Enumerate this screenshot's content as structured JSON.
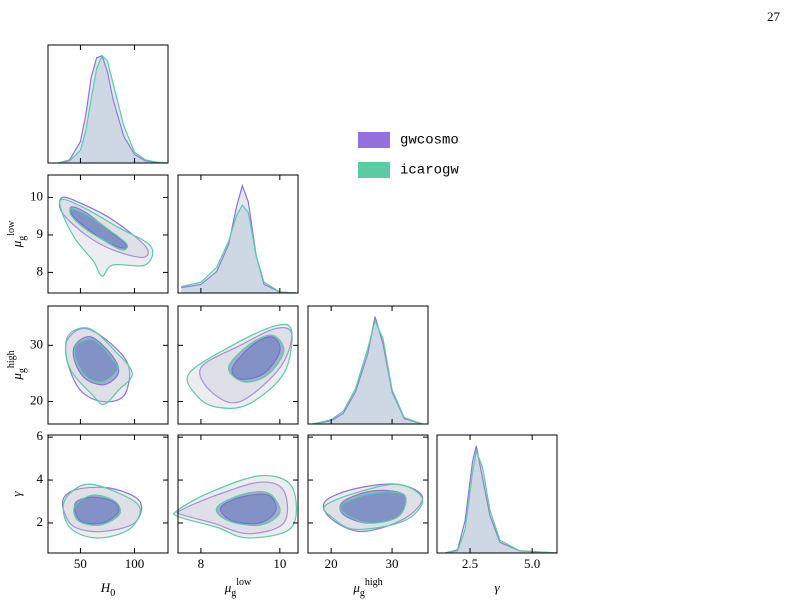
{
  "page_number": "27",
  "chart_data": {
    "type": "corner",
    "series": [
      {
        "name": "gwcosmo",
        "color": "#9370db"
      },
      {
        "name": "icarogw",
        "color": "#5ccba3"
      }
    ],
    "marginal_ylim": [
      0,
      1.1
    ],
    "params": [
      {
        "label": {
          "symbol": "H",
          "sub": "0"
        },
        "xlim": [
          20,
          131
        ],
        "xticks": [
          50,
          100
        ]
      },
      {
        "label": {
          "symbol": "μ",
          "sub": "g",
          "sup": "low"
        },
        "xlim": [
          7.42,
          10.46
        ],
        "xticks": [
          8,
          10
        ],
        "ylim": [
          7.45,
          10.6
        ],
        "yticks": [
          8,
          9,
          10
        ]
      },
      {
        "label": {
          "symbol": "μ",
          "sub": "g",
          "sup": "high"
        },
        "xlim": [
          16.2,
          35.9
        ],
        "xticks": [
          20,
          30
        ],
        "ylim": [
          16,
          37
        ],
        "yticks": [
          20,
          30
        ]
      },
      {
        "label": {
          "symbol": "γ"
        },
        "xlim": [
          1.17,
          6.0
        ],
        "xticks": [
          2.5,
          {
            "value": 5,
            "label": "5.0"
          }
        ],
        "ylim": [
          0.6,
          6.1
        ],
        "yticks": [
          2,
          4,
          6
        ]
      }
    ],
    "marginals": [
      {
        "x": [
          30,
          40,
          50,
          55,
          60,
          65,
          70,
          75,
          80,
          90,
          100,
          110,
          120,
          130
        ],
        "values": [
          [
            0,
            0.03,
            0.2,
            0.45,
            0.8,
            0.98,
            1.0,
            0.85,
            0.6,
            0.25,
            0.08,
            0.02,
            0.005,
            0
          ],
          [
            0,
            0.02,
            0.12,
            0.3,
            0.6,
            0.88,
            1.0,
            0.95,
            0.75,
            0.35,
            0.1,
            0.03,
            0.01,
            0
          ]
        ]
      },
      {
        "x": [
          7.5,
          8,
          8.4,
          8.7,
          8.9,
          9.05,
          9.2,
          9.4,
          9.6,
          10,
          10.4
        ],
        "values": [
          [
            0.05,
            0.08,
            0.2,
            0.45,
            0.8,
            1.0,
            0.85,
            0.35,
            0.08,
            0.01,
            0
          ],
          [
            0.06,
            0.1,
            0.24,
            0.48,
            0.72,
            0.82,
            0.75,
            0.35,
            0.1,
            0.01,
            0
          ]
        ]
      },
      {
        "x": [
          17,
          20,
          22,
          24,
          26,
          27.2,
          28.5,
          30,
          32,
          35
        ],
        "values": [
          [
            0,
            0.03,
            0.1,
            0.3,
            0.65,
            1.0,
            0.75,
            0.3,
            0.05,
            0
          ],
          [
            0,
            0.04,
            0.12,
            0.33,
            0.7,
            0.96,
            0.8,
            0.32,
            0.06,
            0
          ]
        ]
      },
      {
        "x": [
          1.5,
          2,
          2.3,
          2.6,
          2.75,
          3,
          3.3,
          3.7,
          4.5,
          6
        ],
        "values": [
          [
            0,
            0.03,
            0.3,
            0.85,
            1.0,
            0.7,
            0.35,
            0.1,
            0.02,
            0
          ],
          [
            0,
            0.02,
            0.22,
            0.75,
            0.95,
            0.8,
            0.4,
            0.12,
            0.02,
            0
          ]
        ]
      }
    ],
    "contours": [
      {
        "series": [
          {
            "levels": [
              {
                "x": [
                  33,
                  50,
                  80,
                  110,
                  108,
                  80,
                  55,
                  33
                ],
                "y": [
                  10.0,
                  9.85,
                  9.4,
                  8.7,
                  8.4,
                  8.6,
                  9.0,
                  9.6
                ]
              },
              {
                "x": [
                  42,
                  55,
                  75,
                  92,
                  90,
                  75,
                  55,
                  42
                ],
                "y": [
                  9.75,
                  9.6,
                  9.15,
                  8.75,
                  8.65,
                  8.8,
                  9.2,
                  9.55
                ]
              }
            ]
          },
          {
            "levels": [
              {
                "x": [
                  33,
                  55,
                  85,
                  115,
                  110,
                  80,
                  70,
                  62,
                  45,
                  33
                ],
                "y": [
                  9.95,
                  9.7,
                  9.2,
                  8.7,
                  8.2,
                  8.2,
                  7.9,
                  8.3,
                  8.9,
                  9.6
                ]
              },
              {
                "x": [
                  42,
                  58,
                  78,
                  93,
                  88,
                  72,
                  55,
                  42
                ],
                "y": [
                  9.7,
                  9.5,
                  9.1,
                  8.75,
                  8.6,
                  8.85,
                  9.15,
                  9.5
                ]
              }
            ]
          }
        ]
      },
      {
        "series": [
          {
            "levels": [
              {
                "x": [
                  38,
                  55,
                  80,
                  95,
                  90,
                  70,
                  50,
                  38
                ],
                "y": [
                  31,
                  33,
                  30,
                  26,
                  21,
                  20,
                  22,
                  27
                ]
              },
              {
                "x": [
                  45,
                  60,
                  80,
                  85,
                  72,
                  55,
                  45
                ],
                "y": [
                  30,
                  31.5,
                  28,
                  25,
                  23,
                  24,
                  27
                ]
              }
            ]
          },
          {
            "levels": [
              {
                "x": [
                  38,
                  58,
                  82,
                  98,
                  85,
                  72,
                  62,
                  40
                ],
                "y": [
                  31.5,
                  33,
                  29,
                  25,
                  22,
                  19.5,
                  21,
                  26
                ]
              },
              {
                "x": [
                  46,
                  62,
                  80,
                  84,
                  70,
                  55,
                  46
                ],
                "y": [
                  30,
                  31,
                  27.5,
                  25.5,
                  23.5,
                  24.5,
                  27.5
                ]
              }
            ]
          }
        ]
      },
      {
        "series": [
          {
            "levels": [
              {
                "x": [
                  8,
                  9,
                  9.9,
                  10.3,
                  10,
                  9,
                  8.3
                ],
                "y": [
                  26,
                  30,
                  33,
                  32,
                  26,
                  20,
                  21.5
                ]
              },
              {
                "x": [
                  8.8,
                  9.3,
                  9.8,
                  10,
                  9.6,
                  9
                ],
                "y": [
                  26,
                  30,
                  31.5,
                  29,
                  25,
                  24
                ]
              }
            ]
          },
          {
            "levels": [
              {
                "x": [
                  7.7,
                  8.8,
                  9.9,
                  10.3,
                  10.1,
                  9.2,
                  8.4,
                  7.9
                ],
                "y": [
                  25,
                  30,
                  33.5,
                  32.5,
                  25,
                  19.5,
                  19,
                  21
                ]
              },
              {
                "x": [
                  8.7,
                  9.2,
                  9.8,
                  10.1,
                  9.7,
                  9.1
                ],
                "y": [
                  26,
                  30,
                  31.8,
                  29,
                  24.8,
                  23.5
                ]
              }
            ]
          }
        ]
      },
      {
        "series": [
          {
            "levels": [
              {
                "x": [
                  35,
                  50,
                  80,
                  105,
                  100,
                  70,
                  45,
                  35
                ],
                "y": [
                  3.2,
                  3.6,
                  3.6,
                  3.0,
                  2.0,
                  1.6,
                  1.8,
                  2.5
                ]
              },
              {
                "x": [
                  45,
                  60,
                  80,
                  85,
                  70,
                  50
                ],
                "y": [
                  2.9,
                  3.2,
                  3.0,
                  2.5,
                  2.0,
                  2.1
                ]
              }
            ]
          },
          {
            "levels": [
              {
                "x": [
                  35,
                  55,
                  85,
                  105,
                  95,
                  65,
                  40
                ],
                "y": [
                  3.0,
                  3.8,
                  3.4,
                  2.7,
                  1.7,
                  1.3,
                  1.8
                ]
              },
              {
                "x": [
                  45,
                  62,
                  82,
                  86,
                  68,
                  48
                ],
                "y": [
                  2.8,
                  3.3,
                  3.0,
                  2.4,
                  1.9,
                  2.1
                ]
              }
            ]
          }
        ]
      },
      {
        "series": [
          {
            "levels": [
              {
                "x": [
                  7.5,
                  8.4,
                  9.5,
                  10.1,
                  10.1,
                  9.2,
                  8.3,
                  7.5
                ],
                "y": [
                  2.6,
                  3.3,
                  3.9,
                  3.5,
                  2.0,
                  1.5,
                  2.0,
                  2.4
                ]
              },
              {
                "x": [
                  8.5,
                  9.0,
                  9.7,
                  9.9,
                  9.5,
                  8.8
                ],
                "y": [
                  2.7,
                  3.2,
                  3.3,
                  2.6,
                  2.0,
                  2.1
                ]
              }
            ]
          },
          {
            "levels": [
              {
                "x": [
                  7.42,
                  8.2,
                  9.5,
                  10.3,
                  10.3,
                  9.2,
                  8.4,
                  7.42
                ],
                "y": [
                  2.6,
                  3.4,
                  4.2,
                  3.7,
                  1.8,
                  1.3,
                  1.8,
                  2.3
                ]
              },
              {
                "x": [
                  8.4,
                  9.0,
                  9.7,
                  10,
                  9.5,
                  8.7
                ],
                "y": [
                  2.7,
                  3.3,
                  3.4,
                  2.5,
                  1.9,
                  2.1
                ]
              }
            ]
          }
        ]
      },
      {
        "series": [
          {
            "levels": [
              {
                "x": [
                  19,
                  24,
                  31,
                  35,
                  32,
                  25,
                  20
                ],
                "y": [
                  3.0,
                  3.6,
                  3.8,
                  3.2,
                  2.2,
                  1.6,
                  2.2
                ]
              },
              {
                "x": [
                  22,
                  27,
                  32,
                  31,
                  26,
                  22
                ],
                "y": [
                  3.0,
                  3.5,
                  3.3,
                  2.3,
                  2.0,
                  2.4
                ]
              }
            ]
          },
          {
            "levels": [
              {
                "x": [
                  19,
                  24,
                  31,
                  35,
                  32,
                  24,
                  20
                ],
                "y": [
                  2.8,
                  3.4,
                  3.8,
                  3.1,
                  2.1,
                  1.7,
                  2.3
                ]
              },
              {
                "x": [
                  22,
                  27,
                  32,
                  31,
                  26,
                  22
                ],
                "y": [
                  2.9,
                  3.4,
                  3.3,
                  2.3,
                  2.0,
                  2.5
                ]
              }
            ]
          }
        ]
      }
    ]
  }
}
